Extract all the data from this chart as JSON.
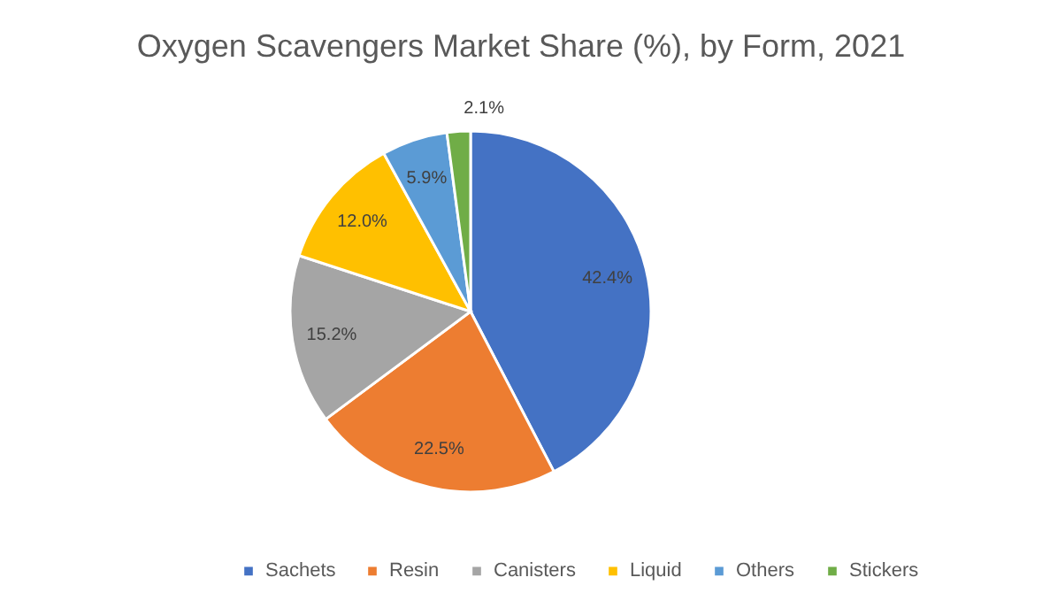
{
  "chart_data": {
    "type": "pie",
    "title": "Oxygen Scavengers Market Share (%), by Form, 2021",
    "categories": [
      "Sachets",
      "Resin",
      "Canisters",
      "Liquid",
      "Others",
      "Stickers"
    ],
    "values": [
      42.4,
      22.5,
      15.2,
      12.0,
      5.9,
      2.1
    ],
    "colors": [
      "#4472c4",
      "#ed7d31",
      "#a5a5a5",
      "#ffc000",
      "#5b9bd5",
      "#70ad47"
    ],
    "value_labels": [
      "42.4%",
      "22.5%",
      "15.2%",
      "12.0%",
      "5.9%",
      "2.1%"
    ],
    "legend": "bottom"
  }
}
